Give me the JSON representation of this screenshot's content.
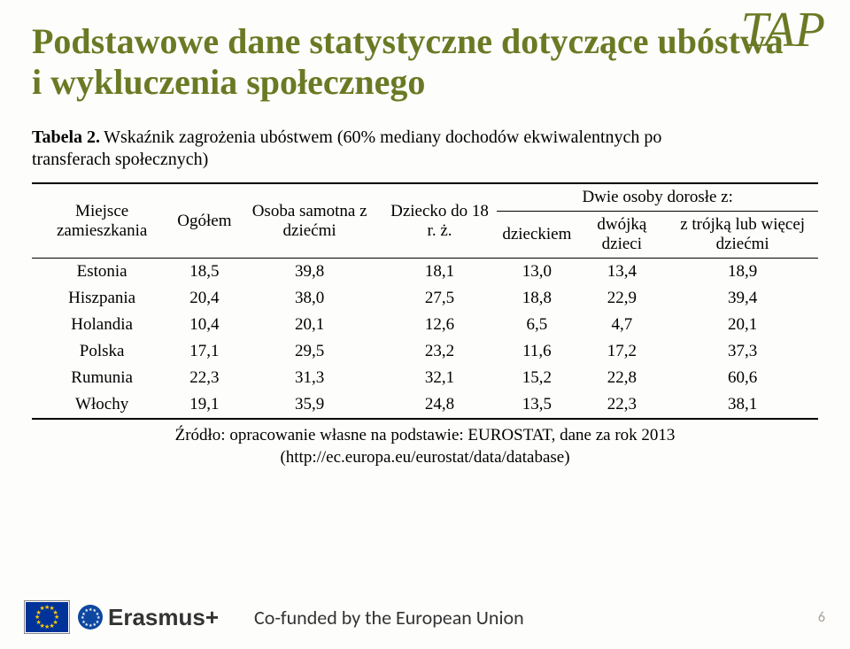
{
  "logo_text": "TAP",
  "title": "Podstawowe dane statystyczne dotyczące ubóstwa i wykluczenia społecznego",
  "table_caption_bold": "Tabela 2.",
  "table_caption_rest": "Wskaźnik zagrożenia ubóstwem (60% mediany dochodów ekwiwalentnych po",
  "table_caption_line2": "transferach społecznych)",
  "headers": {
    "place": "Miejsce zamieszkania",
    "total": "Ogółem",
    "single": "Osoba samotna z dziećmi",
    "child": "Dziecko do 18 r. ż.",
    "couple_group": "Dwie osoby dorosłe z:",
    "one_child": "dzieckiem",
    "two_children": "dwójką dzieci",
    "three_plus": "z trójką lub więcej dziećmi"
  },
  "rows": [
    {
      "place": "Estonia",
      "total": "18,5",
      "single": "39,8",
      "child": "18,1",
      "c1": "13,0",
      "c2": "13,4",
      "c3": "18,9"
    },
    {
      "place": "Hiszpania",
      "total": "20,4",
      "single": "38,0",
      "child": "27,5",
      "c1": "18,8",
      "c2": "22,9",
      "c3": "39,4"
    },
    {
      "place": "Holandia",
      "total": "10,4",
      "single": "20,1",
      "child": "12,6",
      "c1": "6,5",
      "c2": "4,7",
      "c3": "20,1"
    },
    {
      "place": "Polska",
      "total": "17,1",
      "single": "29,5",
      "child": "23,2",
      "c1": "11,6",
      "c2": "17,2",
      "c3": "37,3"
    },
    {
      "place": "Rumunia",
      "total": "22,3",
      "single": "31,3",
      "child": "32,1",
      "c1": "15,2",
      "c2": "22,8",
      "c3": "60,6"
    },
    {
      "place": "Włochy",
      "total": "19,1",
      "single": "35,9",
      "child": "24,8",
      "c1": "13,5",
      "c2": "22,3",
      "c3": "38,1"
    }
  ],
  "source_line1": "Źródło: opracowanie własne na podstawie: EUROSTAT, dane za rok 2013",
  "source_line2": "(http://ec.europa.eu/eurostat/data/database)",
  "erasmus_label": "Erasmus+",
  "cofunded": "Co-funded by the European Union",
  "page_number": "6",
  "colors": {
    "accent": "#6a7a24",
    "text": "#000000",
    "footer_muted": "#a9a29a",
    "eu_blue": "#003399",
    "eu_gold": "#ffcc00"
  }
}
